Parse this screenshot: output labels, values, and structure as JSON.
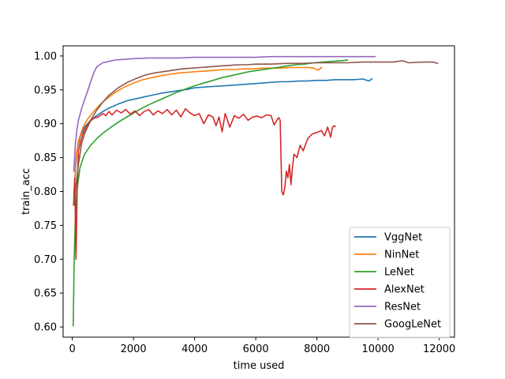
{
  "chart_data": {
    "type": "line",
    "title": "",
    "xlabel": "time used",
    "ylabel": "train_acc",
    "xlim": [
      -300,
      12500
    ],
    "ylim": [
      0.585,
      1.015
    ],
    "xticks": [
      0,
      2000,
      4000,
      6000,
      8000,
      10000,
      12000
    ],
    "yticks": [
      0.6,
      0.65,
      0.7,
      0.75,
      0.8,
      0.85,
      0.9,
      0.95,
      1.0
    ],
    "xtick_labels": [
      "0",
      "2000",
      "4000",
      "6000",
      "8000",
      "10000",
      "12000"
    ],
    "ytick_labels": [
      "0.60",
      "0.65",
      "0.70",
      "0.75",
      "0.80",
      "0.85",
      "0.90",
      "0.95",
      "1.00"
    ],
    "grid": false,
    "legend_position": "lower-right",
    "series": [
      {
        "name": "VggNet",
        "color": "#1f77b4",
        "x": [
          80,
          150,
          250,
          400,
          600,
          800,
          1000,
          1200,
          1500,
          1800,
          2000,
          2300,
          2600,
          2900,
          3200,
          3500,
          3800,
          4000,
          4300,
          4600,
          5000,
          5300,
          5600,
          5900,
          6200,
          6500,
          6800,
          7100,
          7400,
          7700,
          8000,
          8300,
          8600,
          8900,
          9200,
          9500,
          9700,
          9800
        ],
        "y": [
          0.815,
          0.86,
          0.88,
          0.895,
          0.905,
          0.912,
          0.918,
          0.923,
          0.929,
          0.934,
          0.936,
          0.939,
          0.942,
          0.945,
          0.947,
          0.949,
          0.951,
          0.953,
          0.954,
          0.955,
          0.956,
          0.957,
          0.958,
          0.959,
          0.96,
          0.961,
          0.962,
          0.962,
          0.963,
          0.963,
          0.964,
          0.964,
          0.965,
          0.965,
          0.965,
          0.966,
          0.963,
          0.966
        ]
      },
      {
        "name": "NinNet",
        "color": "#ff7f0e",
        "x": [
          60,
          120,
          200,
          350,
          500,
          700,
          900,
          1100,
          1400,
          1700,
          2000,
          2300,
          2600,
          2900,
          3200,
          3500,
          3800,
          4100,
          4400,
          4700,
          5000,
          5300,
          5600,
          5900,
          6200,
          6500,
          6800,
          7100,
          7400,
          7700,
          7900,
          8050,
          8150
        ],
        "y": [
          0.8,
          0.85,
          0.875,
          0.895,
          0.907,
          0.918,
          0.928,
          0.936,
          0.946,
          0.954,
          0.96,
          0.965,
          0.968,
          0.971,
          0.973,
          0.975,
          0.976,
          0.977,
          0.978,
          0.979,
          0.98,
          0.98,
          0.981,
          0.981,
          0.982,
          0.982,
          0.982,
          0.983,
          0.983,
          0.983,
          0.982,
          0.979,
          0.983
        ]
      },
      {
        "name": "LeNet",
        "color": "#2ca02c",
        "x": [
          30,
          60,
          100,
          150,
          250,
          400,
          600,
          800,
          1000,
          1300,
          1600,
          1900,
          2200,
          2500,
          2800,
          3100,
          3400,
          3700,
          4000,
          4300,
          4600,
          4900,
          5200,
          5500,
          5800,
          6100,
          6400,
          6700,
          7000,
          7300,
          7600,
          7900,
          8200,
          8500,
          8800,
          9000
        ],
        "y": [
          0.602,
          0.7,
          0.76,
          0.8,
          0.835,
          0.855,
          0.868,
          0.878,
          0.886,
          0.896,
          0.905,
          0.913,
          0.921,
          0.928,
          0.934,
          0.94,
          0.946,
          0.951,
          0.956,
          0.96,
          0.964,
          0.968,
          0.971,
          0.974,
          0.977,
          0.979,
          0.981,
          0.983,
          0.985,
          0.987,
          0.988,
          0.99,
          0.991,
          0.992,
          0.993,
          0.994
        ]
      },
      {
        "name": "AlexNet",
        "color": "#d62728",
        "x": [
          40,
          80,
          120,
          160,
          200,
          280,
          350,
          450,
          550,
          700,
          850,
          1000,
          1100,
          1200,
          1300,
          1450,
          1600,
          1750,
          1900,
          2050,
          2200,
          2350,
          2500,
          2650,
          2800,
          2950,
          3100,
          3250,
          3400,
          3550,
          3700,
          3850,
          4000,
          4150,
          4300,
          4450,
          4600,
          4700,
          4800,
          4900,
          5000,
          5150,
          5300,
          5450,
          5600,
          5750,
          5900,
          6050,
          6200,
          6350,
          6500,
          6600,
          6700,
          6750,
          6800,
          6850,
          6900,
          6950,
          7000,
          7050,
          7100,
          7150,
          7200,
          7250,
          7350,
          7450,
          7550,
          7700,
          7850,
          8000,
          8150,
          8250,
          8350,
          8450,
          8500,
          8550,
          8600
        ],
        "y": [
          0.78,
          0.82,
          0.7,
          0.8,
          0.86,
          0.875,
          0.885,
          0.895,
          0.902,
          0.908,
          0.91,
          0.915,
          0.912,
          0.918,
          0.913,
          0.92,
          0.916,
          0.921,
          0.914,
          0.919,
          0.912,
          0.918,
          0.921,
          0.913,
          0.919,
          0.915,
          0.921,
          0.913,
          0.92,
          0.91,
          0.922,
          0.916,
          0.912,
          0.915,
          0.9,
          0.913,
          0.91,
          0.897,
          0.91,
          0.888,
          0.915,
          0.895,
          0.912,
          0.908,
          0.914,
          0.905,
          0.91,
          0.911,
          0.909,
          0.913,
          0.912,
          0.898,
          0.906,
          0.909,
          0.905,
          0.8,
          0.795,
          0.805,
          0.83,
          0.82,
          0.84,
          0.81,
          0.835,
          0.855,
          0.85,
          0.868,
          0.86,
          0.878,
          0.885,
          0.887,
          0.89,
          0.882,
          0.895,
          0.88,
          0.893,
          0.897,
          0.896
        ]
      },
      {
        "name": "ResNet",
        "color": "#9467bd",
        "x": [
          50,
          100,
          150,
          200,
          300,
          400,
          500,
          600,
          700,
          800,
          900,
          1000,
          1200,
          1400,
          1700,
          2000,
          2500,
          3000,
          3500,
          4000,
          4500,
          5000,
          5500,
          6000,
          6500,
          7000,
          7500,
          8000,
          8500,
          9000,
          9500,
          9900
        ],
        "y": [
          0.83,
          0.87,
          0.89,
          0.905,
          0.922,
          0.935,
          0.948,
          0.962,
          0.975,
          0.984,
          0.987,
          0.99,
          0.992,
          0.994,
          0.995,
          0.996,
          0.997,
          0.997,
          0.997,
          0.998,
          0.998,
          0.998,
          0.998,
          0.998,
          0.999,
          0.999,
          0.999,
          0.999,
          0.999,
          0.999,
          0.999,
          0.999
        ]
      },
      {
        "name": "GoogLeNet",
        "color": "#8c564b",
        "x": [
          60,
          100,
          150,
          200,
          300,
          400,
          500,
          600,
          800,
          1000,
          1200,
          1500,
          1800,
          2100,
          2400,
          2700,
          3000,
          3300,
          3600,
          3900,
          4200,
          4500,
          4800,
          5100,
          5400,
          5700,
          6000,
          6500,
          7000,
          7500,
          8000,
          8500,
          9000,
          9500,
          10000,
          10500,
          10800,
          11000,
          11500,
          11800,
          11950
        ],
        "y": [
          0.78,
          0.8,
          0.82,
          0.84,
          0.87,
          0.885,
          0.895,
          0.905,
          0.92,
          0.932,
          0.942,
          0.953,
          0.961,
          0.967,
          0.972,
          0.975,
          0.977,
          0.979,
          0.981,
          0.982,
          0.983,
          0.984,
          0.985,
          0.986,
          0.987,
          0.987,
          0.988,
          0.988,
          0.989,
          0.989,
          0.99,
          0.99,
          0.99,
          0.991,
          0.991,
          0.991,
          0.993,
          0.99,
          0.991,
          0.991,
          0.989
        ]
      }
    ]
  }
}
